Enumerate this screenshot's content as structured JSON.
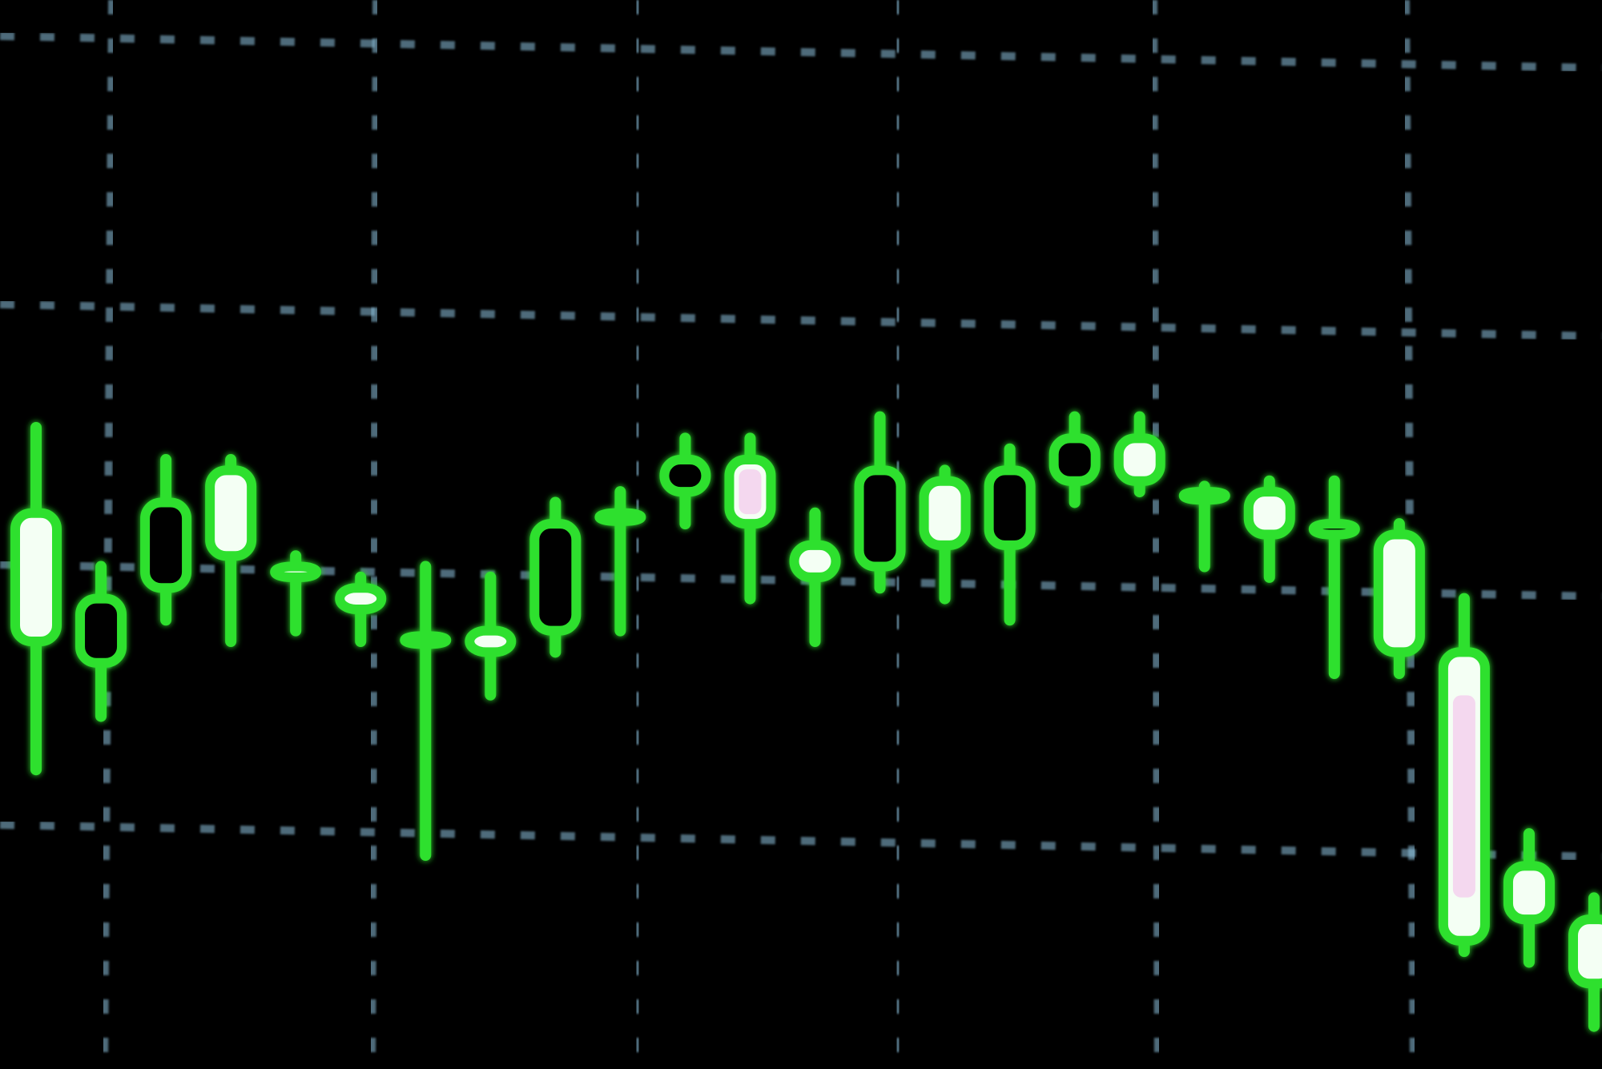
{
  "chart_data": {
    "type": "candlestick",
    "title": "",
    "xlabel": "",
    "ylabel": "",
    "grid": true,
    "grid_style": "dashed",
    "ylim": [
      0,
      100
    ],
    "candles": [
      {
        "open": 40,
        "high": 60,
        "low": 28,
        "close": 52,
        "filled": true
      },
      {
        "open": 38,
        "high": 47,
        "low": 33,
        "close": 44,
        "filled": false
      },
      {
        "open": 45,
        "high": 57,
        "low": 42,
        "close": 53,
        "filled": false
      },
      {
        "open": 48,
        "high": 57,
        "low": 40,
        "close": 56,
        "filled": true
      },
      {
        "open": 46,
        "high": 48,
        "low": 41,
        "close": 47,
        "filled": true
      },
      {
        "open": 43,
        "high": 46,
        "low": 40,
        "close": 45,
        "filled": true
      },
      {
        "open": 40.5,
        "high": 47,
        "low": 20,
        "close": 40.5,
        "filled": false
      },
      {
        "open": 39,
        "high": 46,
        "low": 35,
        "close": 41,
        "filled": true
      },
      {
        "open": 41,
        "high": 53,
        "low": 39,
        "close": 51,
        "filled": false
      },
      {
        "open": 52,
        "high": 54,
        "low": 41,
        "close": 52,
        "filled": false
      },
      {
        "open": 54,
        "high": 59,
        "low": 51,
        "close": 57,
        "filled": false
      },
      {
        "open": 51,
        "high": 59,
        "low": 44,
        "close": 57,
        "filled": true
      },
      {
        "open": 46,
        "high": 52,
        "low": 40,
        "close": 49,
        "filled": true
      },
      {
        "open": 47,
        "high": 61,
        "low": 45,
        "close": 56,
        "filled": false
      },
      {
        "open": 49,
        "high": 56,
        "low": 44,
        "close": 55,
        "filled": true
      },
      {
        "open": 49,
        "high": 58,
        "low": 42,
        "close": 56,
        "filled": false
      },
      {
        "open": 55,
        "high": 61,
        "low": 53,
        "close": 59,
        "filled": false
      },
      {
        "open": 55,
        "high": 61,
        "low": 54,
        "close": 59,
        "filled": true
      },
      {
        "open": 54,
        "high": 54.5,
        "low": 47,
        "close": 54,
        "filled": false
      },
      {
        "open": 50,
        "high": 55,
        "low": 46,
        "close": 54,
        "filled": true
      },
      {
        "open": 51,
        "high": 55,
        "low": 37,
        "close": 50,
        "filled": false
      },
      {
        "open": 39,
        "high": 51,
        "low": 37,
        "close": 50,
        "filled": true
      },
      {
        "open": 12,
        "high": 44,
        "low": 11,
        "close": 39,
        "filled": true
      },
      {
        "open": 14,
        "high": 22,
        "low": 10,
        "close": 19,
        "filled": true
      },
      {
        "open": 8,
        "high": 16,
        "low": 4,
        "close": 14,
        "filled": true
      }
    ]
  },
  "colors": {
    "background": "#000000",
    "grid": "#8fc4e0",
    "candle_outline": "#2ee02e",
    "candle_fill": "#f4fff4",
    "candle_highlight": "#f3c8ec"
  }
}
